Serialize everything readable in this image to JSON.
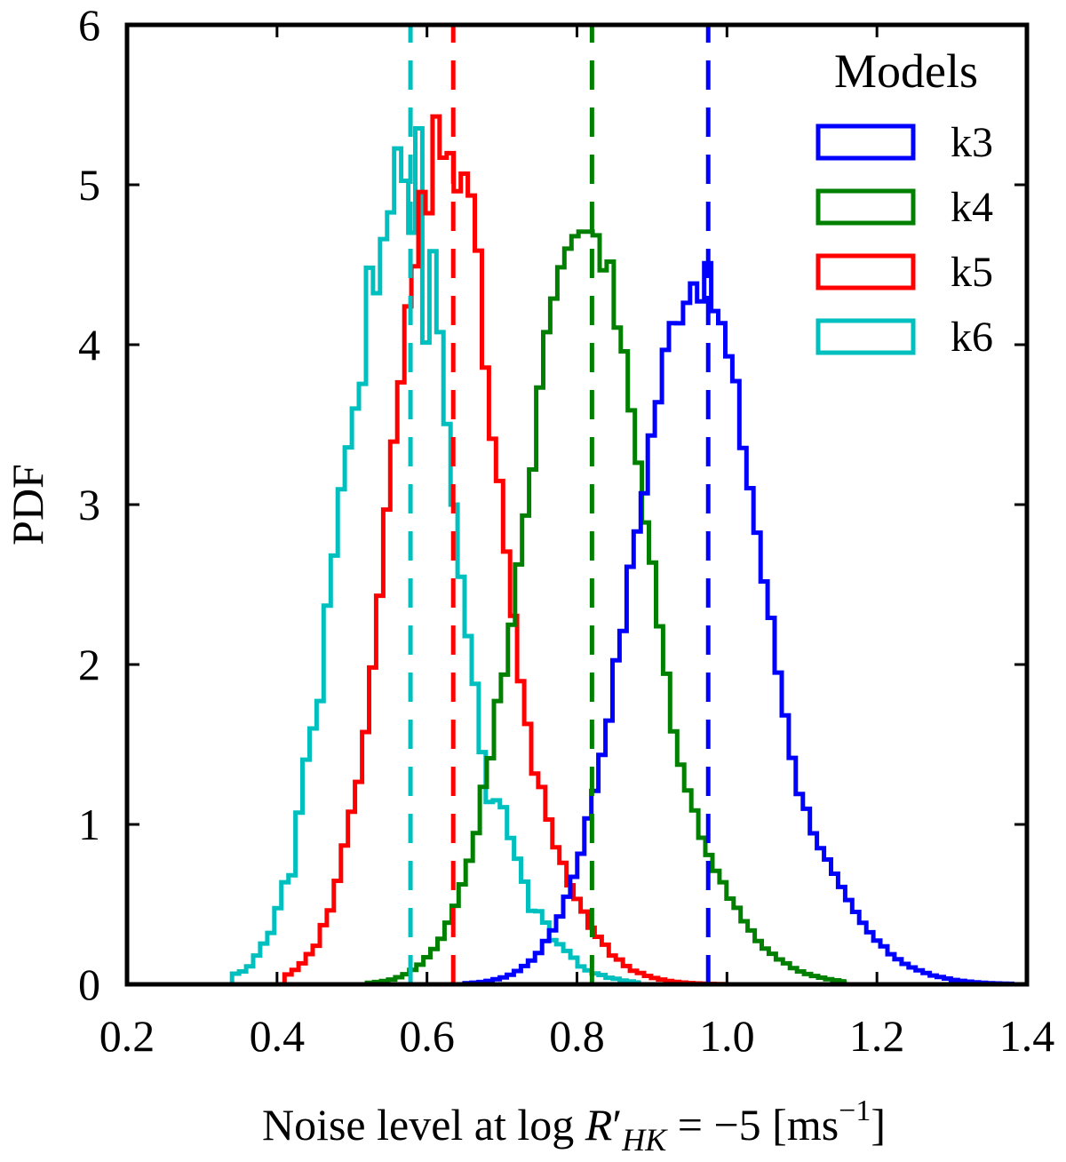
{
  "chart_data": {
    "type": "histogram",
    "xlabel": {
      "prefix": "Noise level at log ",
      "var": "R",
      "prime": "′",
      "sub": "HK",
      "mid": " = −5 [ms",
      "sup": "−1",
      "suffix": "]"
    },
    "ylabel": "PDF",
    "xlim": [
      0.2,
      1.4
    ],
    "ylim": [
      0,
      6
    ],
    "xticks": [
      0.2,
      0.4,
      0.6,
      0.8,
      1.0,
      1.2,
      1.4
    ],
    "xtick_labels": [
      "0.2",
      "0.4",
      "0.6",
      "0.8",
      "1.0",
      "1.2",
      "1.4"
    ],
    "yticks": [
      0,
      1,
      2,
      3,
      4,
      5,
      6
    ],
    "ytick_labels": [
      "0",
      "1",
      "2",
      "3",
      "4",
      "5",
      "6"
    ],
    "legend": {
      "title": "Models",
      "position": "top-right"
    },
    "series": [
      {
        "name": "k3",
        "color": "#0000ff",
        "median": 0.975,
        "peak_x": 0.96,
        "peak": 4.42,
        "sigma": 0.085,
        "start": 0.65,
        "end": 1.38,
        "bin_width": 0.0094
      },
      {
        "name": "k4",
        "color": "#008000",
        "median": 0.82,
        "peak_x": 0.81,
        "peak": 4.8,
        "sigma": 0.081,
        "start": 0.52,
        "end": 1.15,
        "bin_width": 0.0094
      },
      {
        "name": "k5",
        "color": "#ff0000",
        "median": 0.635,
        "peak_x": 0.625,
        "peak": 5.35,
        "sigma": 0.07,
        "start": 0.41,
        "end": 1.0,
        "bin_width": 0.0094
      },
      {
        "name": "k6",
        "color": "#00bfbf",
        "median": 0.578,
        "peak_x": 0.56,
        "peak": 5.2,
        "sigma": 0.072,
        "start": 0.34,
        "end": 0.88,
        "bin_width": 0.0094
      }
    ]
  }
}
